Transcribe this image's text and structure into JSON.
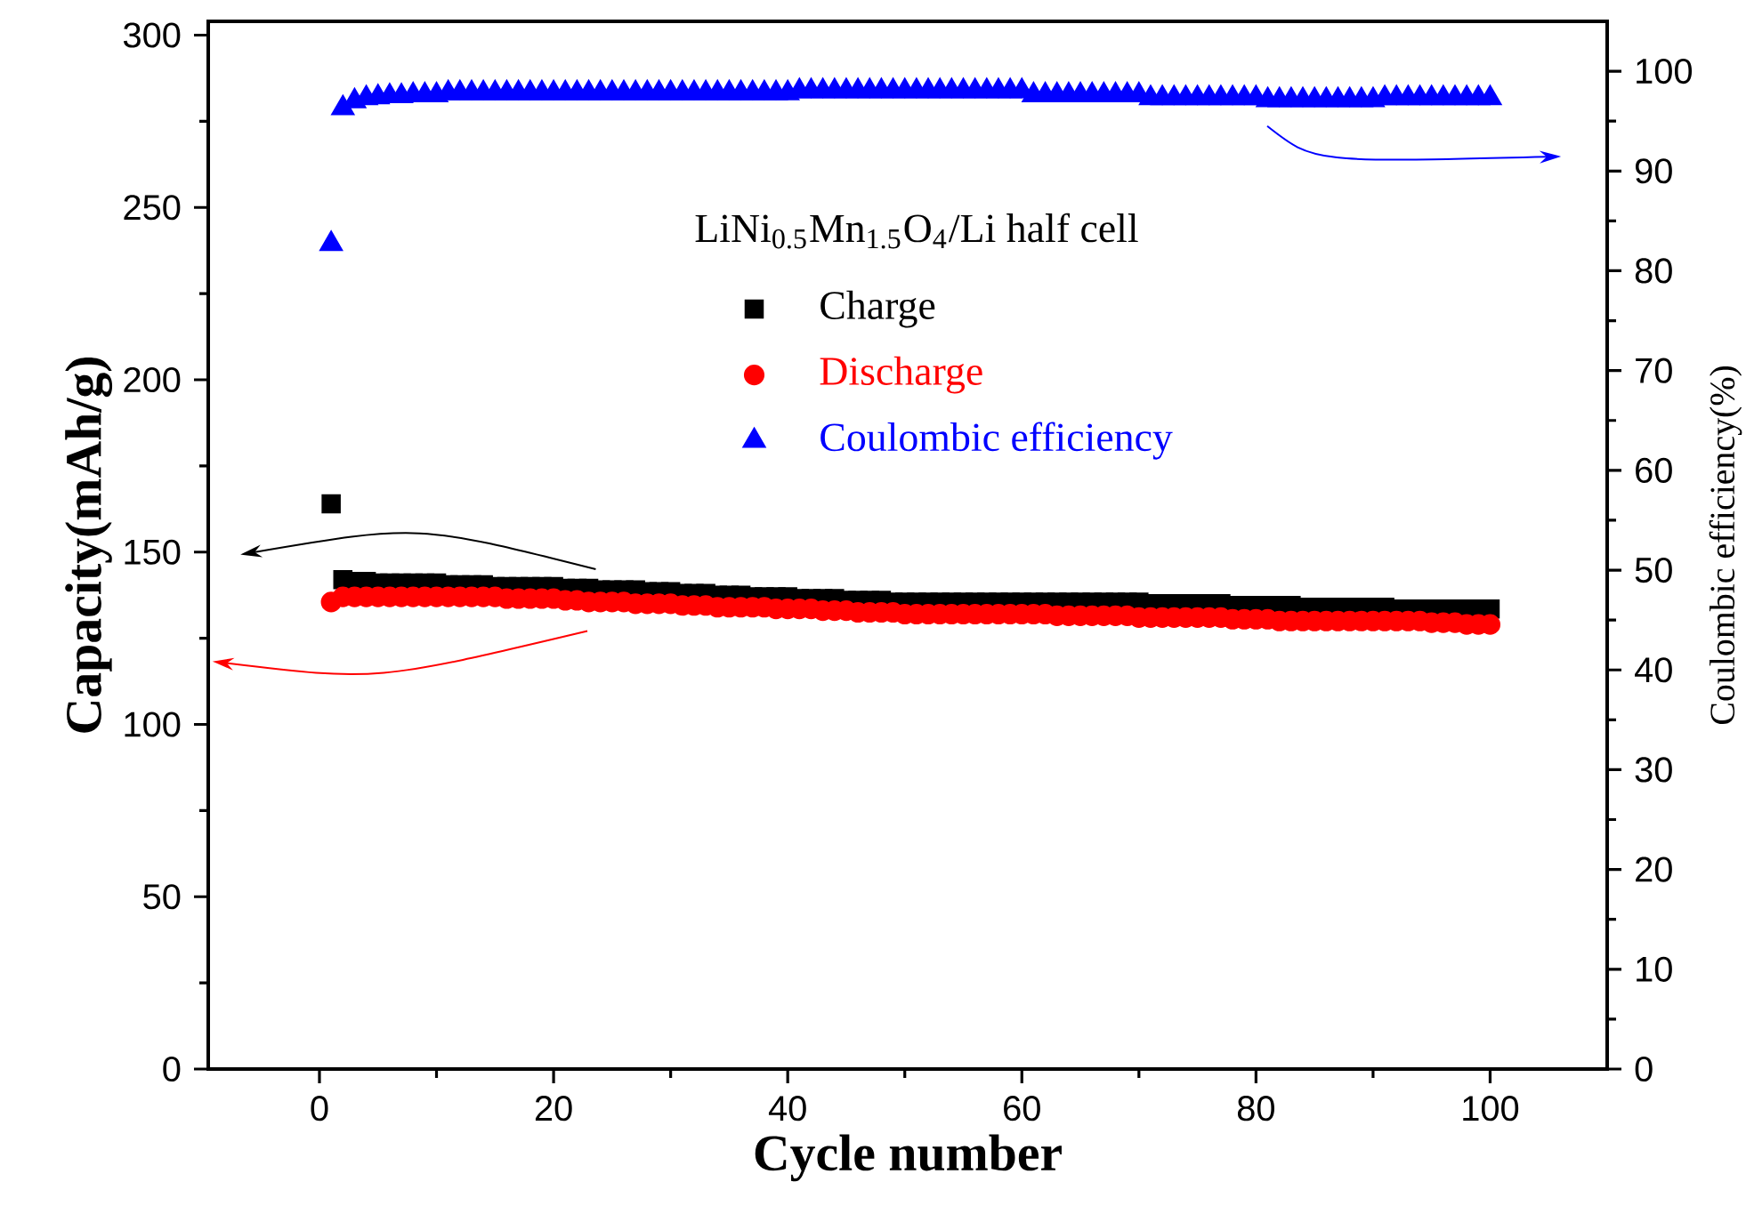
{
  "chart_data": {
    "type": "scatter",
    "xlabel": "Cycle number",
    "ylabel": "Capacity(mAh/g)",
    "y2label": "Coulombic efficiency(%)",
    "legend_title": "LiNi$_{0.5}$Mn$_{1.5}$O$_{4}$/Li half cell",
    "xlim": [
      -9.5,
      110
    ],
    "xticks": [
      0,
      20,
      40,
      60,
      80,
      100
    ],
    "ylim": [
      0,
      304
    ],
    "yticks": [
      0,
      50,
      100,
      150,
      200,
      250,
      300
    ],
    "y2lim": [
      0,
      105
    ],
    "y2ticks": [
      0,
      10,
      20,
      30,
      40,
      50,
      60,
      70,
      80,
      90,
      100
    ],
    "legend": "top",
    "grid": false,
    "x": [
      1,
      2,
      3,
      4,
      5,
      6,
      7,
      8,
      9,
      10,
      11,
      12,
      13,
      14,
      15,
      16,
      17,
      18,
      19,
      20,
      21,
      22,
      23,
      24,
      25,
      26,
      27,
      28,
      29,
      30,
      31,
      32,
      33,
      34,
      35,
      36,
      37,
      38,
      39,
      40,
      41,
      42,
      43,
      44,
      45,
      46,
      47,
      48,
      49,
      50,
      51,
      52,
      53,
      54,
      55,
      56,
      57,
      58,
      59,
      60,
      61,
      62,
      63,
      64,
      65,
      66,
      67,
      68,
      69,
      70,
      71,
      72,
      73,
      74,
      75,
      76,
      77,
      78,
      79,
      80,
      81,
      82,
      83,
      84,
      85,
      86,
      87,
      88,
      89,
      90,
      91,
      92,
      93,
      94,
      95,
      96,
      97,
      98,
      99,
      100
    ],
    "series": [
      {
        "name": "Charge",
        "color": "#000000",
        "marker": "square",
        "values": [
          164,
          142,
          141.5,
          141.5,
          141,
          141,
          141,
          141,
          141,
          141,
          140.5,
          140.5,
          140.5,
          140.5,
          140,
          140,
          140,
          140,
          140,
          140,
          139.5,
          139.5,
          139.5,
          139,
          139,
          139,
          139,
          138.5,
          138.5,
          138.5,
          138,
          138,
          138,
          137.5,
          137.5,
          137.5,
          137,
          137,
          137,
          137,
          136.5,
          136.5,
          136.5,
          136.5,
          136,
          136,
          136,
          136,
          135.5,
          135.5,
          135.5,
          135.5,
          135.5,
          135.5,
          135.5,
          135.5,
          135.5,
          135.5,
          135.5,
          135.5,
          135.5,
          135.5,
          135.5,
          135.5,
          135.5,
          135.5,
          135.5,
          135.5,
          135.5,
          135.5,
          135,
          135,
          135,
          135,
          135,
          135,
          135,
          134.5,
          134.5,
          134.5,
          134.5,
          134.5,
          134.5,
          134,
          134,
          134,
          134,
          134,
          134,
          134,
          134,
          133.5,
          133.5,
          133.5,
          133.5,
          133.5,
          133.5,
          133.5,
          133.5,
          133.5
        ]
      },
      {
        "name": "Discharge",
        "color": "#ff0000",
        "marker": "circle",
        "values": [
          135.5,
          137,
          137,
          137,
          137,
          137,
          137,
          137,
          137,
          137,
          137,
          137,
          137,
          137,
          137,
          136.5,
          136.5,
          136.5,
          136.5,
          136.5,
          136,
          136,
          135.5,
          135.5,
          135.5,
          135.5,
          135,
          135,
          135,
          135,
          134.5,
          134.5,
          134.5,
          134,
          134,
          134,
          134,
          134,
          133.5,
          133.5,
          133.5,
          133.5,
          133,
          133,
          133,
          132.5,
          132.5,
          132.5,
          132.5,
          132,
          132,
          132,
          132,
          132,
          132,
          132,
          132,
          132,
          132,
          132,
          132,
          132,
          131.5,
          131.5,
          131.5,
          131.5,
          131.5,
          131.5,
          131.5,
          131,
          131,
          131,
          131,
          131,
          131,
          131,
          131,
          130.5,
          130.5,
          130.5,
          130.5,
          130,
          130,
          130,
          130,
          130,
          130,
          130,
          130,
          130,
          130,
          130,
          130,
          130,
          129.5,
          129.5,
          129.5,
          129,
          129,
          129
        ]
      },
      {
        "name": "Coulombic efficiency",
        "color": "#0000ff",
        "marker": "triangle",
        "axis": "y2",
        "values": [
          82.7,
          96.3,
          97,
          97.3,
          97.4,
          97.5,
          97.5,
          97.6,
          97.6,
          97.6,
          97.8,
          97.8,
          97.8,
          97.8,
          97.8,
          97.8,
          97.8,
          97.8,
          97.8,
          97.8,
          97.8,
          97.8,
          97.8,
          97.8,
          97.8,
          97.8,
          97.8,
          97.8,
          97.8,
          97.8,
          97.8,
          97.8,
          97.8,
          97.8,
          97.8,
          97.8,
          97.8,
          97.8,
          97.8,
          97.8,
          98,
          98,
          98,
          98,
          98,
          98,
          98,
          98,
          98,
          98,
          98,
          98,
          98,
          98,
          98,
          98,
          98,
          98,
          98,
          98,
          97.6,
          97.6,
          97.6,
          97.6,
          97.6,
          97.6,
          97.6,
          97.6,
          97.6,
          97.6,
          97.3,
          97.3,
          97.3,
          97.3,
          97.3,
          97.3,
          97.3,
          97.3,
          97.3,
          97.3,
          97.1,
          97.1,
          97.1,
          97.1,
          97.1,
          97.1,
          97.1,
          97.1,
          97.1,
          97.1,
          97.3,
          97.3,
          97.3,
          97.3,
          97.3,
          97.3,
          97.3,
          97.3,
          97.3,
          97.3
        ]
      }
    ]
  }
}
